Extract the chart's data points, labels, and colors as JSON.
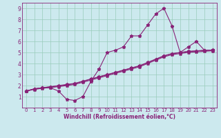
{
  "xlabel": "Windchill (Refroidissement éolien,°C)",
  "xlim": [
    -0.5,
    23.5
  ],
  "ylim": [
    0,
    9.5
  ],
  "xticks": [
    0,
    1,
    2,
    3,
    4,
    5,
    6,
    7,
    8,
    9,
    10,
    11,
    12,
    13,
    14,
    15,
    16,
    17,
    18,
    19,
    20,
    21,
    22,
    23
  ],
  "yticks": [
    1,
    2,
    3,
    4,
    5,
    6,
    7,
    8,
    9
  ],
  "bg_color": "#cce9ee",
  "line_color": "#882277",
  "grid_color": "#99ccbb",
  "series1_x": [
    0,
    1,
    2,
    3,
    4,
    5,
    6,
    7,
    8,
    9,
    10,
    11,
    12,
    13,
    14,
    15,
    16,
    17,
    18,
    19,
    20,
    21,
    22,
    23
  ],
  "series1_y": [
    1.5,
    1.7,
    1.8,
    1.8,
    1.5,
    0.75,
    0.65,
    1.0,
    2.4,
    3.5,
    5.0,
    5.2,
    5.5,
    6.5,
    6.5,
    7.5,
    8.5,
    9.0,
    7.4,
    5.0,
    5.5,
    6.0,
    5.2,
    5.2
  ],
  "series2_x": [
    0,
    1,
    2,
    3,
    4,
    5,
    6,
    7,
    8,
    9,
    10,
    11,
    12,
    13,
    14,
    15,
    16,
    17,
    18,
    19,
    20,
    21,
    22,
    23
  ],
  "series2_y": [
    1.5,
    1.7,
    1.8,
    1.9,
    2.0,
    2.1,
    2.2,
    2.4,
    2.6,
    2.8,
    3.0,
    3.2,
    3.4,
    3.6,
    3.8,
    4.1,
    4.4,
    4.7,
    4.9,
    5.0,
    5.1,
    5.15,
    5.2,
    5.2
  ],
  "series3_x": [
    0,
    1,
    2,
    3,
    4,
    5,
    6,
    7,
    8,
    9,
    10,
    11,
    12,
    13,
    14,
    15,
    16,
    17,
    18,
    19,
    20,
    21,
    22,
    23
  ],
  "series3_y": [
    1.5,
    1.65,
    1.75,
    1.82,
    1.9,
    2.0,
    2.1,
    2.3,
    2.5,
    2.7,
    2.9,
    3.1,
    3.3,
    3.5,
    3.7,
    4.0,
    4.3,
    4.6,
    4.8,
    4.9,
    5.0,
    5.05,
    5.1,
    5.15
  ],
  "series4_x": [
    0,
    1,
    2,
    3,
    4,
    5,
    6,
    7,
    8,
    9,
    10,
    11,
    12,
    13,
    14,
    15,
    16,
    17,
    18,
    19,
    20,
    21,
    22,
    23
  ],
  "series4_y": [
    1.5,
    1.7,
    1.8,
    1.88,
    1.96,
    2.06,
    2.18,
    2.38,
    2.58,
    2.78,
    2.98,
    3.18,
    3.38,
    3.58,
    3.78,
    4.08,
    4.38,
    4.68,
    4.88,
    4.98,
    5.08,
    5.13,
    5.18,
    5.23
  ]
}
